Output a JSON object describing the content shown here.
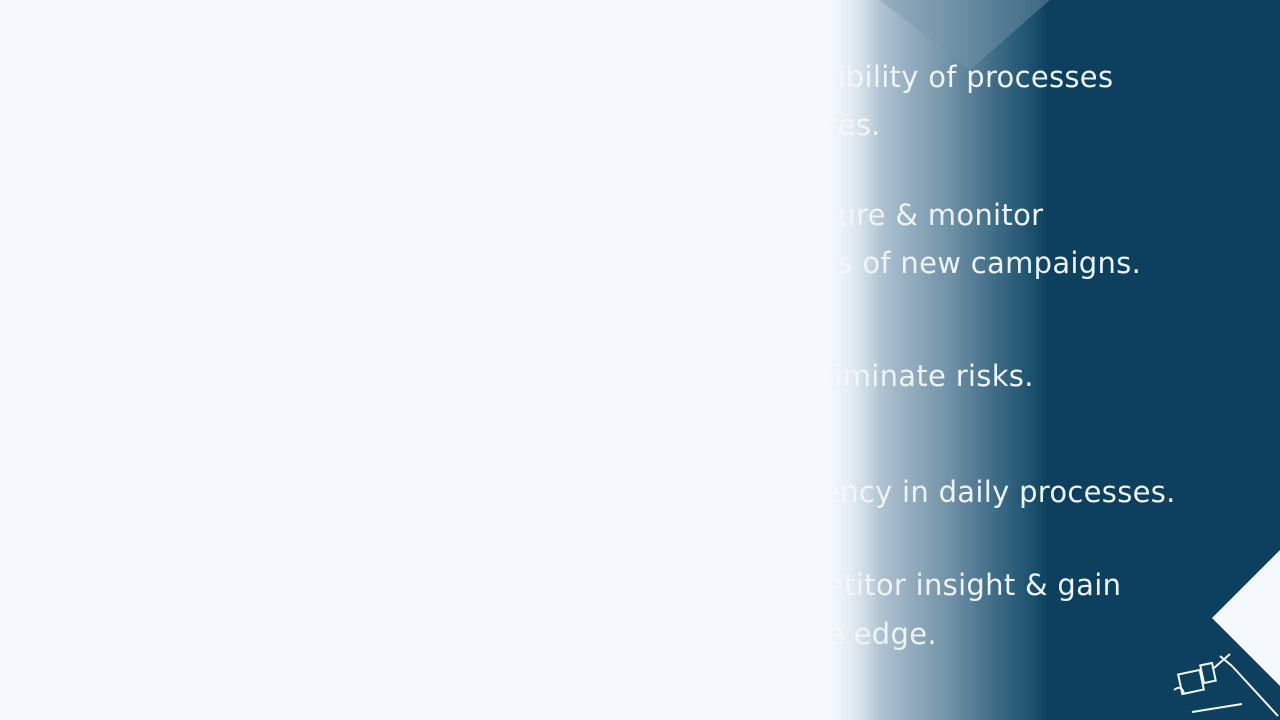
{
  "slide": {
    "bullets": [
      {
        "text": "sibility of processes"
      },
      {
        "text": "res."
      },
      {
        "text": "sure & monitor"
      },
      {
        "text": "ss of new campaigns."
      },
      {
        "text": "liminate risks."
      },
      {
        "text": "ency in daily processes."
      },
      {
        "text": "etitor insight & gain"
      },
      {
        "text": "e edge."
      }
    ]
  },
  "colors": {
    "background": "#f5f9fd",
    "panel": "#0c405e",
    "text": "#eef3f7"
  },
  "icons": {
    "logo": "satellite-icon",
    "corner": "triangle-decoration"
  }
}
